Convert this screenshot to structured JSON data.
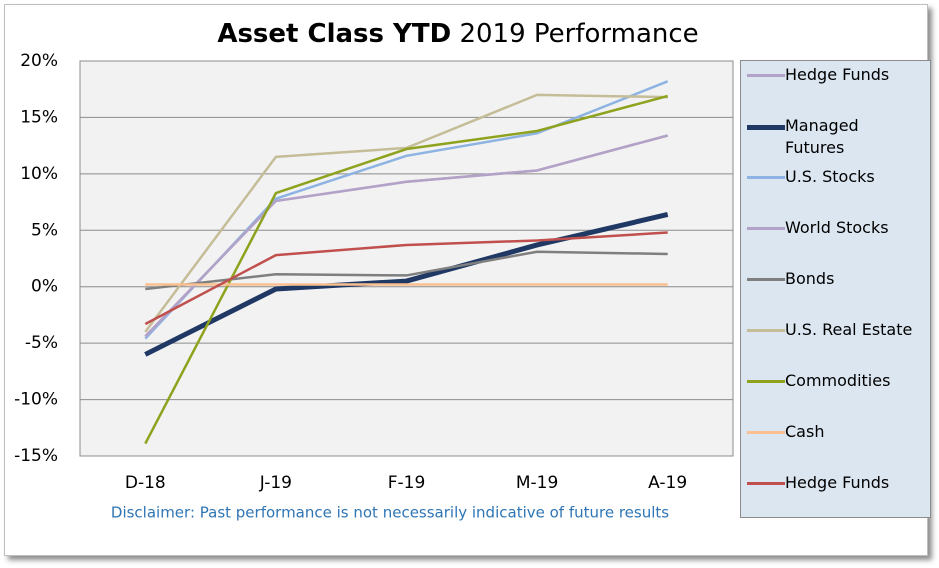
{
  "chart_data": {
    "type": "line",
    "title": {
      "bold": "Asset Class YTD",
      "regular": "2019 Performance"
    },
    "categories": [
      "D-18",
      "J-19",
      "F-19",
      "M-19",
      "A-19"
    ],
    "ylim": [
      -15,
      20
    ],
    "yticks": [
      {
        "value": -15,
        "label": "-15%"
      },
      {
        "value": -10,
        "label": "-10%"
      },
      {
        "value": -5,
        "label": "-5%"
      },
      {
        "value": 0,
        "label": "0%"
      },
      {
        "value": 5,
        "label": "5%"
      },
      {
        "value": 10,
        "label": "10%"
      },
      {
        "value": 15,
        "label": "15%"
      },
      {
        "value": 20,
        "label": "20%"
      }
    ],
    "grid": true,
    "legend": "right",
    "series": [
      {
        "name": "Hedge Funds",
        "color": "#b3a2c7",
        "values": [
          -4.4,
          7.6,
          9.3,
          10.3,
          13.4
        ]
      },
      {
        "name": "Managed Futures",
        "color": "#1f3864",
        "line_width": 5,
        "values": [
          -6.0,
          -0.2,
          0.5,
          3.7,
          6.4
        ]
      },
      {
        "name": "U.S. Stocks",
        "color": "#8db3e2",
        "values": [
          -4.6,
          7.8,
          11.6,
          13.6,
          18.2
        ]
      },
      {
        "name": "World Stocks",
        "color": "#b3a2c7",
        "values": [
          -4.4,
          7.6,
          9.3,
          10.3,
          13.4
        ]
      },
      {
        "name": "Bonds",
        "color": "#7f7f7f",
        "values": [
          -0.2,
          1.1,
          1.0,
          3.1,
          2.9
        ]
      },
      {
        "name": "U.S. Real Estate",
        "color": "#c4bd97",
        "values": [
          -4.0,
          11.5,
          12.3,
          17.0,
          16.8
        ]
      },
      {
        "name": "Commodities",
        "color": "#8ea21e",
        "values": [
          -13.9,
          8.3,
          12.2,
          13.8,
          16.9
        ]
      },
      {
        "name": "Cash",
        "color": "#fac090",
        "values": [
          0.2,
          0.2,
          0.2,
          0.2,
          0.2
        ]
      },
      {
        "name": "Hedge Funds",
        "color": "#c0504d",
        "values": [
          -3.3,
          2.8,
          3.7,
          4.1,
          4.8
        ]
      }
    ],
    "disclaimer": "Disclaimer: Past performance is not necessarily indicative of future results"
  }
}
